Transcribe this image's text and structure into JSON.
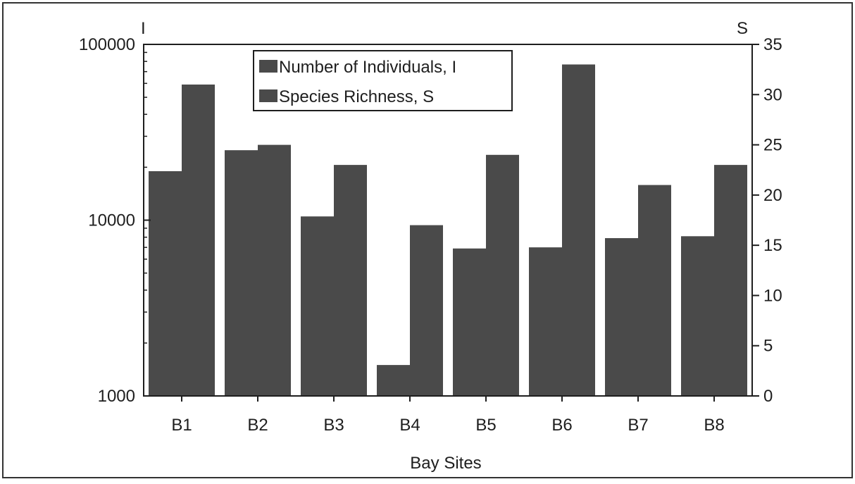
{
  "colors": {
    "bar": "#4a4a4a",
    "axis": "#1e1e1e",
    "background": "#ffffff",
    "frame": "#333333"
  },
  "chart_data": {
    "type": "bar",
    "xlabel": "Bay Sites",
    "categories": [
      "B1",
      "B2",
      "B3",
      "B4",
      "B5",
      "B6",
      "B7",
      "B8"
    ],
    "left_axis": {
      "label": "I",
      "scale": "log",
      "range": [
        1000,
        100000
      ],
      "ticks": [
        1000,
        10000,
        100000
      ],
      "tick_labels": [
        "1000",
        "10000",
        "100000"
      ]
    },
    "right_axis": {
      "label": "S",
      "scale": "linear",
      "range": [
        0,
        35
      ],
      "ticks": [
        0,
        5,
        10,
        15,
        20,
        25,
        30,
        35
      ],
      "tick_labels": [
        "0",
        "5",
        "10",
        "15",
        "20",
        "25",
        "30",
        "35"
      ]
    },
    "series": [
      {
        "name": "Number of Individuals, I",
        "axis": "left",
        "values": [
          19000,
          25000,
          10500,
          1500,
          6900,
          7000,
          7900,
          8100
        ]
      },
      {
        "name": "Species Richness, S",
        "axis": "right",
        "values": [
          31,
          25,
          23,
          17,
          24,
          33,
          21,
          23
        ]
      }
    ],
    "legend": {
      "position": "top-center"
    },
    "grid": false
  }
}
